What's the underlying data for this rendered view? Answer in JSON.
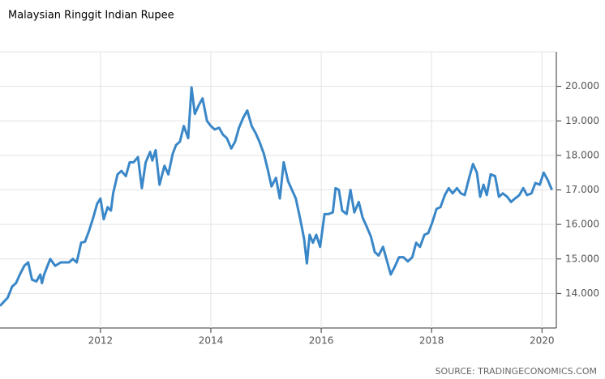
{
  "chart_data": {
    "type": "line",
    "title": "Malaysian Ringgit Indian Rupee",
    "source": "SOURCE: TRADINGECONOMICS.COM",
    "x": [
      2010.18,
      2010.32,
      2010.4,
      2010.47,
      2010.54,
      2010.62,
      2010.69,
      2010.76,
      2010.84,
      2010.91,
      2010.94,
      2010.98,
      2011.09,
      2011.18,
      2011.28,
      2011.43,
      2011.5,
      2011.57,
      2011.65,
      2011.72,
      2011.79,
      2011.87,
      2011.94,
      2012.0,
      2012.06,
      2012.13,
      2012.19,
      2012.23,
      2012.31,
      2012.38,
      2012.46,
      2012.53,
      2012.6,
      2012.68,
      2012.75,
      2012.82,
      2012.9,
      2012.94,
      2013.0,
      2013.07,
      2013.16,
      2013.23,
      2013.31,
      2013.37,
      2013.44,
      2013.51,
      2013.59,
      2013.65,
      2013.71,
      2013.78,
      2013.85,
      2013.93,
      2014.0,
      2014.07,
      2014.15,
      2014.22,
      2014.29,
      2014.37,
      2014.44,
      2014.51,
      2014.59,
      2014.66,
      2014.74,
      2014.81,
      2014.88,
      2014.96,
      2015.03,
      2015.1,
      2015.18,
      2015.25,
      2015.32,
      2015.4,
      2015.47,
      2015.54,
      2015.62,
      2015.69,
      2015.74,
      2015.79,
      2015.85,
      2015.91,
      2015.98,
      2016.06,
      2016.13,
      2016.21,
      2016.26,
      2016.32,
      2016.38,
      2016.46,
      2016.53,
      2016.6,
      2016.68,
      2016.75,
      2016.82,
      2016.9,
      2016.97,
      2017.04,
      2017.12,
      2017.19,
      2017.26,
      2017.34,
      2017.41,
      2017.49,
      2017.57,
      2017.65,
      2017.72,
      2017.79,
      2017.87,
      2017.94,
      2018.01,
      2018.09,
      2018.16,
      2018.24,
      2018.31,
      2018.38,
      2018.46,
      2018.53,
      2018.6,
      2018.68,
      2018.75,
      2018.82,
      2018.88,
      2018.94,
      2019.0,
      2019.07,
      2019.15,
      2019.22,
      2019.29,
      2019.37,
      2019.44,
      2019.51,
      2019.59,
      2019.66,
      2019.73,
      2019.81,
      2019.88,
      2019.96,
      2020.03,
      2020.1,
      2020.18
    ],
    "series": [
      {
        "name": "Malaysian Ringgit Indian Rupee",
        "color": "#3a87c8",
        "values": [
          13.64,
          13.88,
          14.2,
          14.3,
          14.55,
          14.8,
          14.9,
          14.4,
          14.35,
          14.55,
          14.3,
          14.55,
          15.0,
          14.8,
          14.9,
          14.9,
          15.0,
          14.9,
          15.47,
          15.5,
          15.8,
          16.2,
          16.6,
          16.75,
          16.15,
          16.5,
          16.4,
          16.9,
          17.45,
          17.55,
          17.4,
          17.8,
          17.8,
          17.95,
          17.05,
          17.8,
          18.1,
          17.85,
          18.15,
          17.15,
          17.7,
          17.45,
          18.05,
          18.3,
          18.4,
          18.85,
          18.5,
          19.97,
          19.2,
          19.45,
          19.65,
          19.0,
          18.85,
          18.75,
          18.8,
          18.6,
          18.5,
          18.2,
          18.4,
          18.8,
          19.1,
          19.3,
          18.85,
          18.65,
          18.4,
          18.05,
          17.6,
          17.1,
          17.35,
          16.75,
          17.8,
          17.25,
          17.0,
          16.75,
          16.15,
          15.58,
          14.87,
          15.7,
          15.47,
          15.7,
          15.35,
          16.3,
          16.3,
          16.35,
          17.05,
          17.0,
          16.4,
          16.3,
          17.0,
          16.35,
          16.65,
          16.2,
          15.95,
          15.65,
          15.2,
          15.1,
          15.35,
          14.95,
          14.55,
          14.8,
          15.05,
          15.05,
          14.93,
          15.05,
          15.47,
          15.35,
          15.7,
          15.75,
          16.05,
          16.45,
          16.5,
          16.85,
          17.05,
          16.9,
          17.05,
          16.9,
          16.85,
          17.35,
          17.75,
          17.5,
          16.8,
          17.15,
          16.85,
          17.45,
          17.4,
          16.8,
          16.9,
          16.8,
          16.65,
          16.75,
          16.85,
          17.05,
          16.85,
          16.9,
          17.2,
          17.15,
          17.5,
          17.3,
          17.0
        ]
      }
    ],
    "xlim": [
      2010.18,
      2020.26
    ],
    "xticks": [
      2012,
      2014,
      2016,
      2018,
      2020
    ],
    "ylim": [
      13,
      21
    ],
    "yticks": [
      {
        "value": 14,
        "label": "14.000"
      },
      {
        "value": 15,
        "label": "15.000"
      },
      {
        "value": 16,
        "label": "16.000"
      },
      {
        "value": 17,
        "label": "17.000"
      },
      {
        "value": 18,
        "label": "18.000"
      },
      {
        "value": 19,
        "label": "19.000"
      },
      {
        "value": 20,
        "label": "20.000"
      }
    ],
    "grid": true
  }
}
